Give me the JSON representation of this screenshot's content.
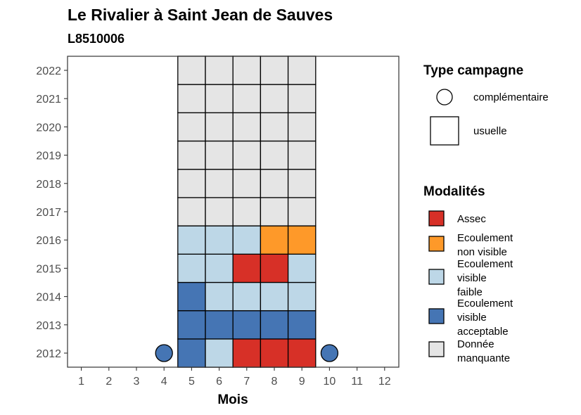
{
  "chart_data": {
    "type": "heatmap",
    "title": "Le Rivalier à Saint Jean de Sauves",
    "subtitle": "L8510006",
    "xlabel": "Mois",
    "ylabel": "",
    "x_categories": [
      "1",
      "2",
      "3",
      "4",
      "5",
      "6",
      "7",
      "8",
      "9",
      "10",
      "11",
      "12"
    ],
    "y_categories": [
      "2012",
      "2013",
      "2014",
      "2015",
      "2016",
      "2017",
      "2018",
      "2019",
      "2020",
      "2021",
      "2022"
    ],
    "grid": false,
    "colors": {
      "Assec": "#d73027",
      "Ecoulement non visible": "#fe9929",
      "Ecoulement visible faible": "#bdd7e7",
      "Ecoulement visible acceptable": "#4575b4",
      "Donnée manquante": "#e5e5e5"
    },
    "cells": [
      {
        "year": "2012",
        "month": 5,
        "modalite": "Ecoulement visible acceptable",
        "campagne": "usuelle"
      },
      {
        "year": "2012",
        "month": 6,
        "modalite": "Ecoulement visible faible",
        "campagne": "usuelle"
      },
      {
        "year": "2012",
        "month": 7,
        "modalite": "Assec",
        "campagne": "usuelle"
      },
      {
        "year": "2012",
        "month": 8,
        "modalite": "Assec",
        "campagne": "usuelle"
      },
      {
        "year": "2012",
        "month": 9,
        "modalite": "Assec",
        "campagne": "usuelle"
      },
      {
        "year": "2013",
        "month": 5,
        "modalite": "Ecoulement visible acceptable",
        "campagne": "usuelle"
      },
      {
        "year": "2013",
        "month": 6,
        "modalite": "Ecoulement visible acceptable",
        "campagne": "usuelle"
      },
      {
        "year": "2013",
        "month": 7,
        "modalite": "Ecoulement visible acceptable",
        "campagne": "usuelle"
      },
      {
        "year": "2013",
        "month": 8,
        "modalite": "Ecoulement visible acceptable",
        "campagne": "usuelle"
      },
      {
        "year": "2013",
        "month": 9,
        "modalite": "Ecoulement visible acceptable",
        "campagne": "usuelle"
      },
      {
        "year": "2014",
        "month": 5,
        "modalite": "Ecoulement visible acceptable",
        "campagne": "usuelle"
      },
      {
        "year": "2014",
        "month": 6,
        "modalite": "Ecoulement visible faible",
        "campagne": "usuelle"
      },
      {
        "year": "2014",
        "month": 7,
        "modalite": "Ecoulement visible faible",
        "campagne": "usuelle"
      },
      {
        "year": "2014",
        "month": 8,
        "modalite": "Ecoulement visible faible",
        "campagne": "usuelle"
      },
      {
        "year": "2014",
        "month": 9,
        "modalite": "Ecoulement visible faible",
        "campagne": "usuelle"
      },
      {
        "year": "2015",
        "month": 5,
        "modalite": "Ecoulement visible faible",
        "campagne": "usuelle"
      },
      {
        "year": "2015",
        "month": 6,
        "modalite": "Ecoulement visible faible",
        "campagne": "usuelle"
      },
      {
        "year": "2015",
        "month": 7,
        "modalite": "Assec",
        "campagne": "usuelle"
      },
      {
        "year": "2015",
        "month": 8,
        "modalite": "Assec",
        "campagne": "usuelle"
      },
      {
        "year": "2015",
        "month": 9,
        "modalite": "Ecoulement visible faible",
        "campagne": "usuelle"
      },
      {
        "year": "2016",
        "month": 5,
        "modalite": "Ecoulement visible faible",
        "campagne": "usuelle"
      },
      {
        "year": "2016",
        "month": 6,
        "modalite": "Ecoulement visible faible",
        "campagne": "usuelle"
      },
      {
        "year": "2016",
        "month": 7,
        "modalite": "Ecoulement visible faible",
        "campagne": "usuelle"
      },
      {
        "year": "2016",
        "month": 8,
        "modalite": "Ecoulement non visible",
        "campagne": "usuelle"
      },
      {
        "year": "2016",
        "month": 9,
        "modalite": "Ecoulement non visible",
        "campagne": "usuelle"
      },
      {
        "year": "2017",
        "month": 5,
        "modalite": "Donnée manquante",
        "campagne": "usuelle"
      },
      {
        "year": "2017",
        "month": 6,
        "modalite": "Donnée manquante",
        "campagne": "usuelle"
      },
      {
        "year": "2017",
        "month": 7,
        "modalite": "Donnée manquante",
        "campagne": "usuelle"
      },
      {
        "year": "2017",
        "month": 8,
        "modalite": "Donnée manquante",
        "campagne": "usuelle"
      },
      {
        "year": "2017",
        "month": 9,
        "modalite": "Donnée manquante",
        "campagne": "usuelle"
      },
      {
        "year": "2018",
        "month": 5,
        "modalite": "Donnée manquante",
        "campagne": "usuelle"
      },
      {
        "year": "2018",
        "month": 6,
        "modalite": "Donnée manquante",
        "campagne": "usuelle"
      },
      {
        "year": "2018",
        "month": 7,
        "modalite": "Donnée manquante",
        "campagne": "usuelle"
      },
      {
        "year": "2018",
        "month": 8,
        "modalite": "Donnée manquante",
        "campagne": "usuelle"
      },
      {
        "year": "2018",
        "month": 9,
        "modalite": "Donnée manquante",
        "campagne": "usuelle"
      },
      {
        "year": "2019",
        "month": 5,
        "modalite": "Donnée manquante",
        "campagne": "usuelle"
      },
      {
        "year": "2019",
        "month": 6,
        "modalite": "Donnée manquante",
        "campagne": "usuelle"
      },
      {
        "year": "2019",
        "month": 7,
        "modalite": "Donnée manquante",
        "campagne": "usuelle"
      },
      {
        "year": "2019",
        "month": 8,
        "modalite": "Donnée manquante",
        "campagne": "usuelle"
      },
      {
        "year": "2019",
        "month": 9,
        "modalite": "Donnée manquante",
        "campagne": "usuelle"
      },
      {
        "year": "2020",
        "month": 5,
        "modalite": "Donnée manquante",
        "campagne": "usuelle"
      },
      {
        "year": "2020",
        "month": 6,
        "modalite": "Donnée manquante",
        "campagne": "usuelle"
      },
      {
        "year": "2020",
        "month": 7,
        "modalite": "Donnée manquante",
        "campagne": "usuelle"
      },
      {
        "year": "2020",
        "month": 8,
        "modalite": "Donnée manquante",
        "campagne": "usuelle"
      },
      {
        "year": "2020",
        "month": 9,
        "modalite": "Donnée manquante",
        "campagne": "usuelle"
      },
      {
        "year": "2021",
        "month": 5,
        "modalite": "Donnée manquante",
        "campagne": "usuelle"
      },
      {
        "year": "2021",
        "month": 6,
        "modalite": "Donnée manquante",
        "campagne": "usuelle"
      },
      {
        "year": "2021",
        "month": 7,
        "modalite": "Donnée manquante",
        "campagne": "usuelle"
      },
      {
        "year": "2021",
        "month": 8,
        "modalite": "Donnée manquante",
        "campagne": "usuelle"
      },
      {
        "year": "2021",
        "month": 9,
        "modalite": "Donnée manquante",
        "campagne": "usuelle"
      },
      {
        "year": "2022",
        "month": 5,
        "modalite": "Donnée manquante",
        "campagne": "usuelle"
      },
      {
        "year": "2022",
        "month": 6,
        "modalite": "Donnée manquante",
        "campagne": "usuelle"
      },
      {
        "year": "2022",
        "month": 7,
        "modalite": "Donnée manquante",
        "campagne": "usuelle"
      },
      {
        "year": "2022",
        "month": 8,
        "modalite": "Donnée manquante",
        "campagne": "usuelle"
      },
      {
        "year": "2022",
        "month": 9,
        "modalite": "Donnée manquante",
        "campagne": "usuelle"
      },
      {
        "year": "2012",
        "month": 4,
        "modalite": "Ecoulement visible acceptable",
        "campagne": "complémentaire"
      },
      {
        "year": "2012",
        "month": 10,
        "modalite": "Ecoulement visible acceptable",
        "campagne": "complémentaire"
      }
    ],
    "legend_campagne": {
      "title": "Type campagne",
      "items": [
        {
          "shape": "circle",
          "label": "complémentaire"
        },
        {
          "shape": "square",
          "label": "usuelle"
        }
      ]
    },
    "legend_modalites": {
      "title": "Modalités",
      "items": [
        {
          "key": "Assec",
          "lines": [
            "Assec"
          ]
        },
        {
          "key": "Ecoulement non visible",
          "lines": [
            "Ecoulement",
            "non visible"
          ]
        },
        {
          "key": "Ecoulement visible faible",
          "lines": [
            "Ecoulement",
            "visible",
            "faible"
          ]
        },
        {
          "key": "Ecoulement visible acceptable",
          "lines": [
            "Ecoulement",
            "visible",
            "acceptable"
          ]
        },
        {
          "key": "Donnée manquante",
          "lines": [
            "Donnée",
            "manquante"
          ]
        }
      ]
    },
    "legend_placement": "right"
  }
}
